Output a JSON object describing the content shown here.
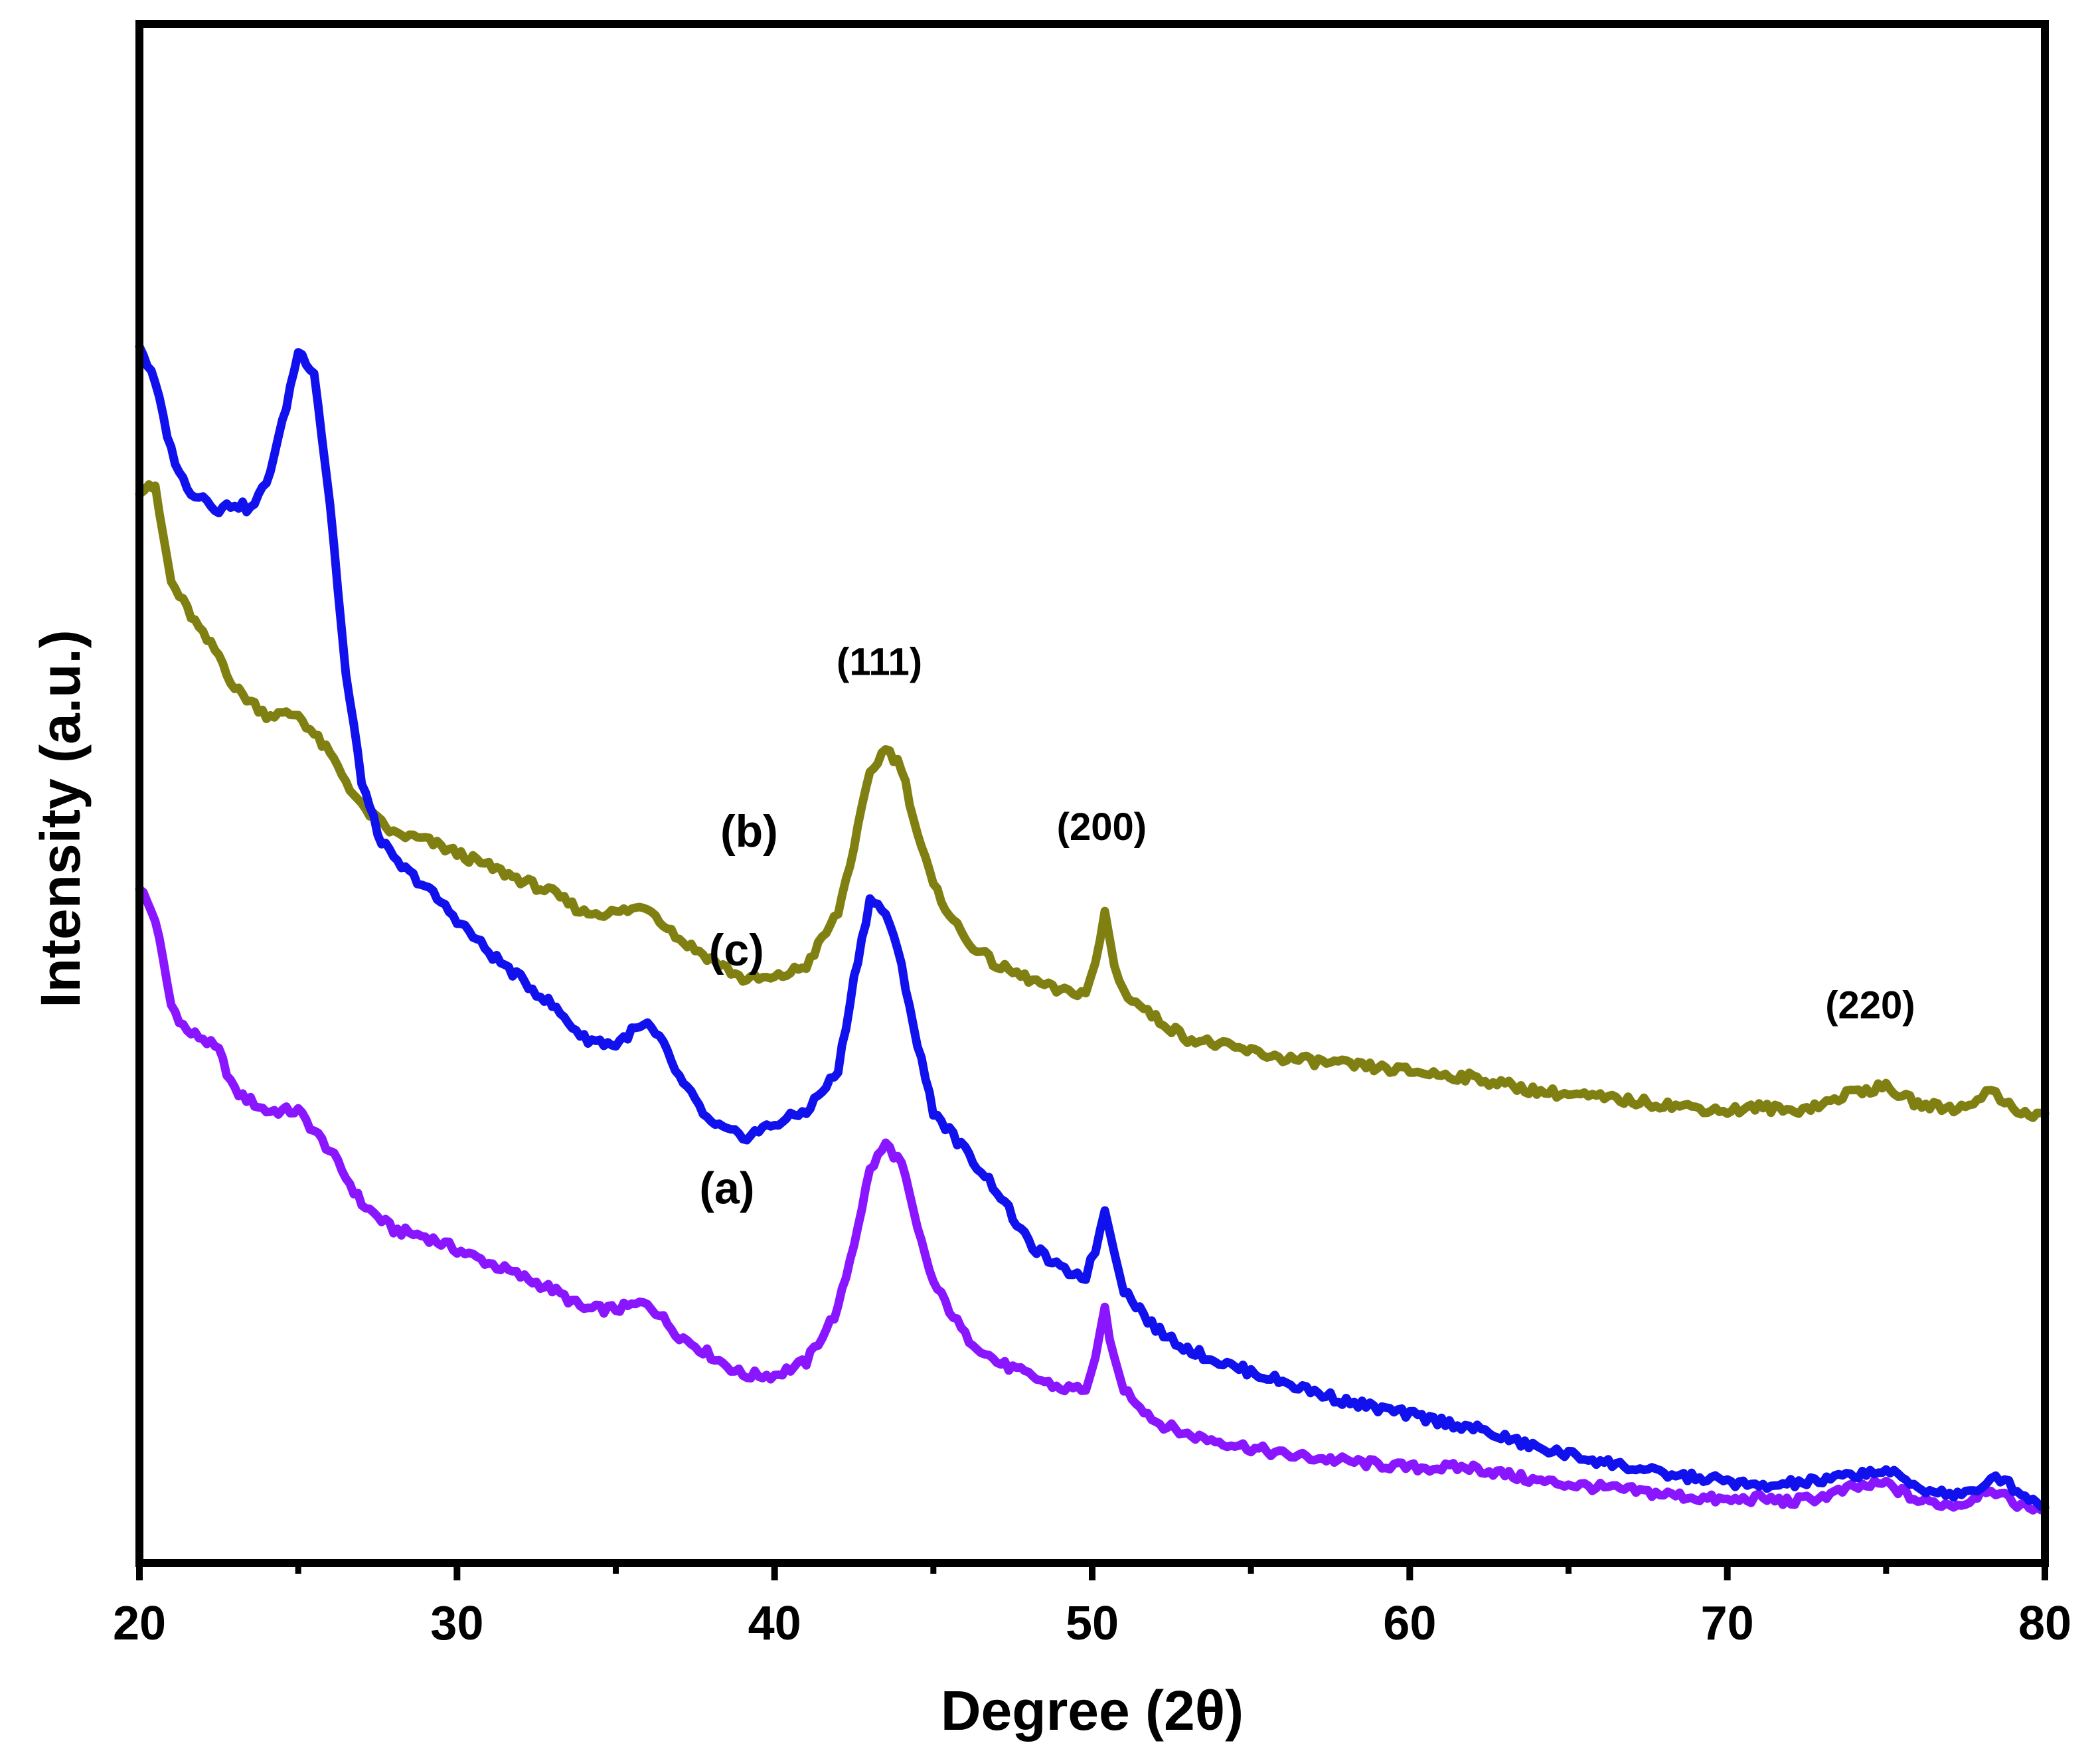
{
  "chart_data": {
    "type": "line",
    "title": "",
    "xlabel": "Degree (2θ)",
    "ylabel": "Intensity (a.u.)",
    "xlim": [
      20,
      80
    ],
    "ylim": [
      0,
      100
    ],
    "xticks": [
      20,
      30,
      40,
      50,
      60,
      70,
      80
    ],
    "yticks_shown": false,
    "grid": false,
    "legend": "none",
    "series": [
      {
        "name": "(a)",
        "color": "#8a16ff",
        "x": [
          20,
          20.5,
          21,
          21.5,
          22,
          22.5,
          23,
          24,
          25,
          26,
          27,
          28,
          29,
          30,
          31,
          32,
          33,
          34,
          35,
          36,
          37,
          38,
          39,
          40,
          41,
          42,
          42.5,
          43,
          43.5,
          44,
          44.5,
          45,
          46,
          47,
          48,
          49,
          49.8,
          50.1,
          50.4,
          50.7,
          51,
          52,
          53,
          54,
          56,
          58,
          60,
          62,
          64,
          66,
          68,
          70,
          71,
          72,
          73,
          74,
          75,
          76,
          77,
          77.5,
          78,
          78.3,
          78.6,
          79,
          79.5,
          80
        ],
        "values": [
          47,
          44.5,
          38,
          36,
          35.5,
          34.5,
          31.5,
          30,
          30,
          27,
          23,
          21,
          20.5,
          19.5,
          18.5,
          17.5,
          16.5,
          15,
          15,
          15.5,
          13,
          11.5,
          10,
          10,
          11,
          15,
          20,
          25.5,
          27.5,
          26,
          21,
          17,
          13,
          11,
          10,
          9,
          9,
          11,
          15,
          11,
          9,
          6.5,
          5.5,
          5,
          4,
          3.5,
          3,
          3,
          2,
          1.5,
          1,
          0.5,
          0.7,
          0.4,
          0.8,
          1.5,
          1.8,
          0.5,
          0.2,
          0.3,
          1.2,
          1.5,
          0.9,
          0.4,
          0,
          0
        ]
      },
      {
        "name": "(b)",
        "color": "#808012",
        "x": [
          20,
          20.3,
          20.5,
          21,
          21.5,
          22,
          22.5,
          23,
          24,
          25,
          26,
          27,
          28,
          29,
          30,
          31,
          32,
          33,
          34,
          35,
          36,
          37,
          38,
          39,
          40,
          41,
          42,
          42.5,
          43,
          43.5,
          44,
          44.5,
          45,
          46,
          47,
          48,
          49,
          49.8,
          50.1,
          50.4,
          50.7,
          51,
          52,
          53,
          54,
          56,
          58,
          60,
          62,
          64,
          66,
          68,
          70,
          71,
          72,
          73,
          74,
          75,
          76,
          77,
          77.5,
          78,
          78.3,
          78.6,
          79,
          79.5,
          80
        ],
        "values": [
          77,
          77.5,
          77,
          70,
          68,
          66,
          64.5,
          62,
          60,
          60,
          57,
          53,
          51,
          50.5,
          49.5,
          48.5,
          47.5,
          46.5,
          45,
          45,
          45.5,
          43,
          41.5,
          40,
          40,
          41,
          45,
          50,
          55.5,
          57.5,
          56,
          51,
          47,
          43,
          41,
          40,
          39,
          39,
          41,
          45,
          41,
          39,
          37,
          35.5,
          35,
          34,
          33.5,
          33,
          32.5,
          31.5,
          31,
          30.5,
          30,
          30.3,
          30,
          30.5,
          31.5,
          31.8,
          30.5,
          30.2,
          30.3,
          31.2,
          31.5,
          30.9,
          30.4,
          29.5,
          29.8
        ]
      },
      {
        "name": "(c)",
        "color": "#1111ee",
        "x": [
          20,
          20.5,
          21,
          21.5,
          22,
          22.5,
          23,
          23.5,
          24,
          24.5,
          25,
          25.5,
          26,
          26.5,
          27,
          27.5,
          28,
          29,
          30,
          31,
          32,
          33,
          34,
          35,
          35.5,
          36,
          36.5,
          37,
          38,
          39,
          40,
          41,
          42,
          42.5,
          43,
          43.5,
          44,
          44.5,
          45,
          46,
          47,
          48,
          49,
          49.8,
          50.1,
          50.4,
          50.7,
          51,
          52,
          53,
          54,
          56,
          58,
          60,
          62,
          64,
          66,
          68,
          70,
          71,
          72,
          73,
          74,
          75,
          76,
          77,
          77.5,
          78,
          78.3,
          78.6,
          79,
          79.5,
          80
        ],
        "values": [
          88,
          85,
          80,
          77,
          76.5,
          75.5,
          76,
          75.5,
          77.5,
          82,
          87.5,
          86,
          76,
          63,
          55,
          51,
          49,
          47,
          44.5,
          42,
          40,
          38,
          35.5,
          35,
          36,
          36.5,
          35,
          32.5,
          29,
          28,
          29,
          30,
          33,
          40,
          46,
          45,
          41,
          35,
          30,
          27,
          24,
          20,
          18,
          17.5,
          19.5,
          22.5,
          19.5,
          16.5,
          13.5,
          12,
          11,
          9.5,
          8,
          7,
          6,
          4.5,
          3.5,
          2.5,
          2,
          1.5,
          1.8,
          2,
          2.5,
          2.8,
          1.5,
          1,
          1,
          1.2,
          2.5,
          2.2,
          1.5,
          0.7,
          0
        ]
      }
    ],
    "annotations": [
      {
        "text": "(111)",
        "x": 43.3,
        "y": 63
      },
      {
        "text": "(200)",
        "x": 50.3,
        "y": 50.5
      },
      {
        "text": "(220)",
        "x": 74.5,
        "y": 37
      }
    ],
    "curve_labels": [
      {
        "text": "(b)",
        "x": 39.2,
        "y": 50
      },
      {
        "text": "(c)",
        "x": 38.8,
        "y": 41
      },
      {
        "text": "(a)",
        "x": 38.5,
        "y": 23
      }
    ]
  }
}
